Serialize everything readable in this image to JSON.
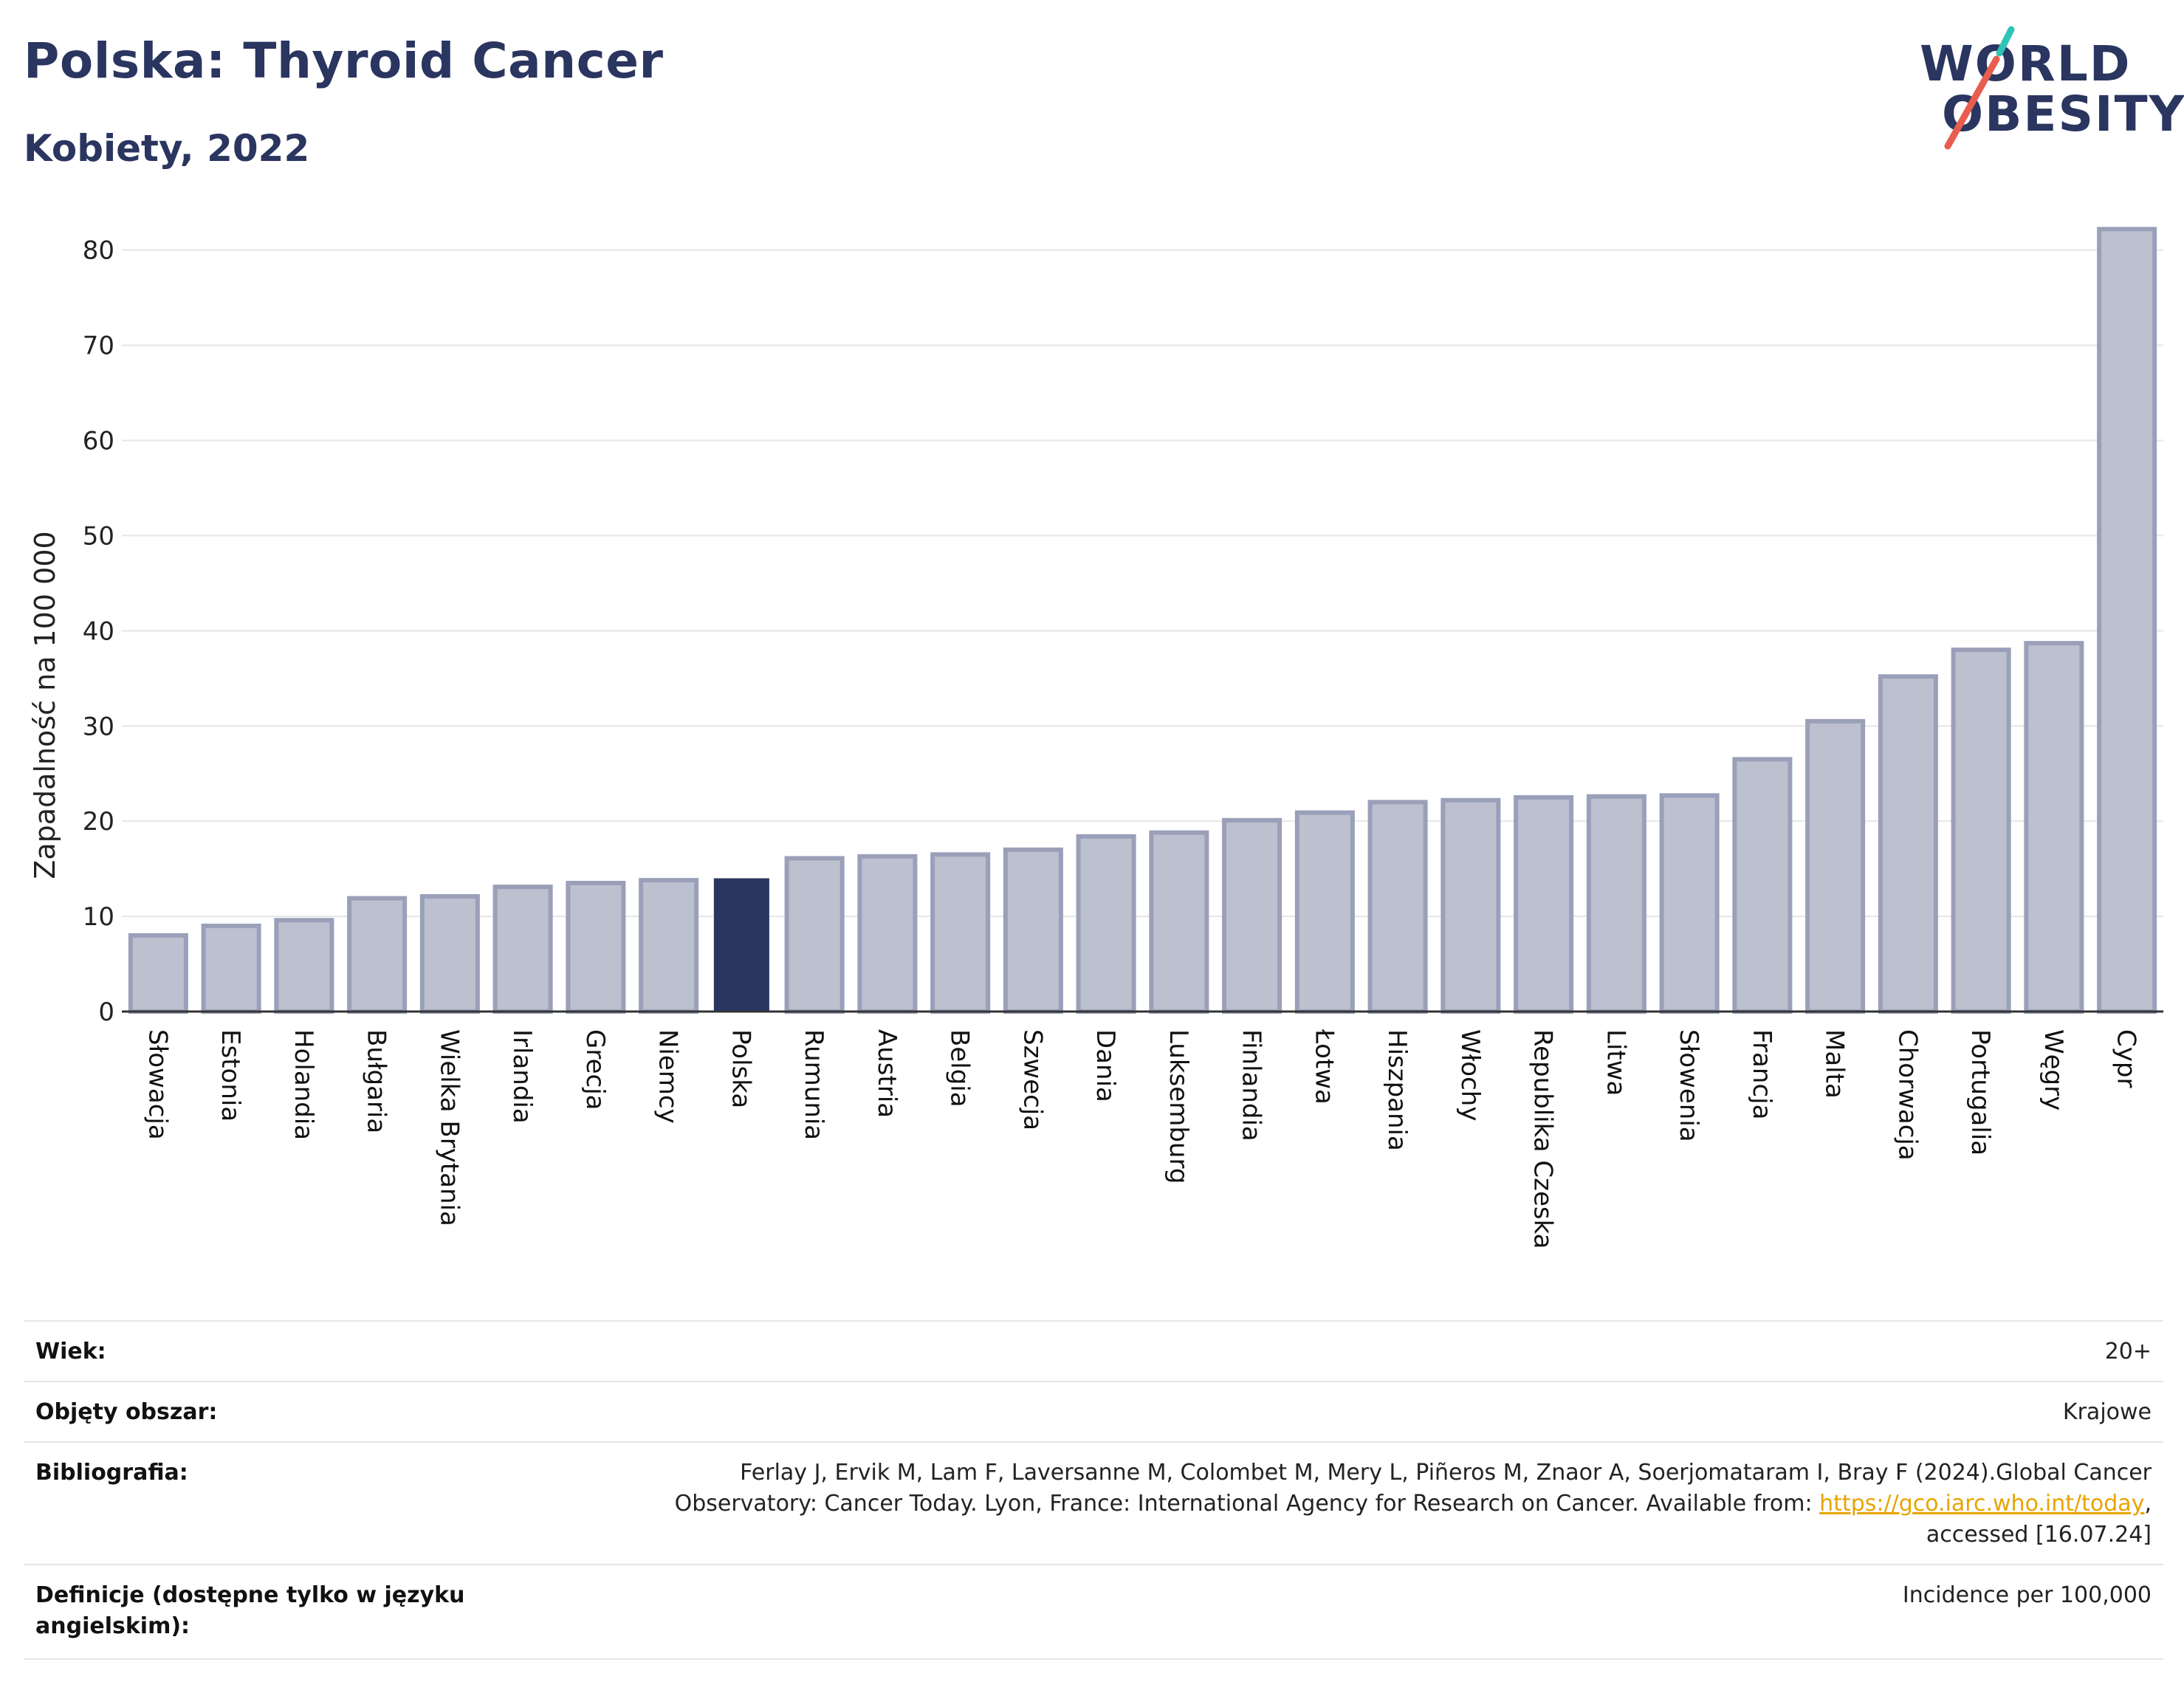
{
  "header": {
    "title": "Polska: Thyroid Cancer",
    "subtitle": "Kobiety, 2022"
  },
  "logo": {
    "line1": "WORLD",
    "line2": "OBESITY",
    "colors": {
      "text": "#2a3560",
      "slash_top": "#2ec4b6",
      "slash_bottom": "#e85d4f"
    }
  },
  "chart_data": {
    "type": "bar",
    "ylabel": "Zapadalność na 100 000",
    "xlabel": "",
    "ylim": [
      0,
      83
    ],
    "yticks": [
      0,
      10,
      20,
      30,
      40,
      50,
      60,
      70,
      80
    ],
    "grid": true,
    "highlight": "Polska",
    "colors": {
      "bar": "#bcc0cf",
      "bar_border": "#9aa0b9",
      "highlight": "#2a3560",
      "grid": "#e6e6e6",
      "axis": "#333333"
    },
    "categories": [
      "Słowacja",
      "Estonia",
      "Holandia",
      "Bułgaria",
      "Wielka Brytania",
      "Irlandia",
      "Grecja",
      "Niemcy",
      "Polska",
      "Rumunia",
      "Austria",
      "Belgia",
      "Szwecja",
      "Dania",
      "Luksemburg",
      "Finlandia",
      "Łotwa",
      "Hiszpania",
      "Włochy",
      "Republika Czeska",
      "Litwa",
      "Słowenia",
      "Francja",
      "Malta",
      "Chorwacja",
      "Portugalia",
      "Węgry",
      "Cypr"
    ],
    "values": [
      8.0,
      9.0,
      9.6,
      11.9,
      12.1,
      13.1,
      13.5,
      13.8,
      14.0,
      16.1,
      16.3,
      16.5,
      17.0,
      18.4,
      18.8,
      20.1,
      20.9,
      22.0,
      22.2,
      22.5,
      22.6,
      22.7,
      26.5,
      30.5,
      35.2,
      38.0,
      38.7,
      82.2
    ]
  },
  "meta": {
    "rows": [
      {
        "label": "Wiek:",
        "value": "20+"
      },
      {
        "label": "Objęty obszar:",
        "value": "Krajowe"
      },
      {
        "label": "Bibliografia:",
        "value_line1": "Ferlay J, Ervik M, Lam F, Laversanne M, Colombet M, Mery L, Piñeros M, Znaor A, Soerjomataram I, Bray F (2024).Global Cancer",
        "value_line2_pre": "Observatory: Cancer Today. Lyon, France: International Agency for Research on Cancer. Available from: ",
        "value_link": "https://gco.iarc.who.int/today",
        "value_line2_post": ",",
        "value_line3": "accessed [16.07.24]"
      },
      {
        "label": "Definicje (dostępne tylko w języku angielskim):",
        "value": "Incidence per 100,000"
      }
    ]
  }
}
